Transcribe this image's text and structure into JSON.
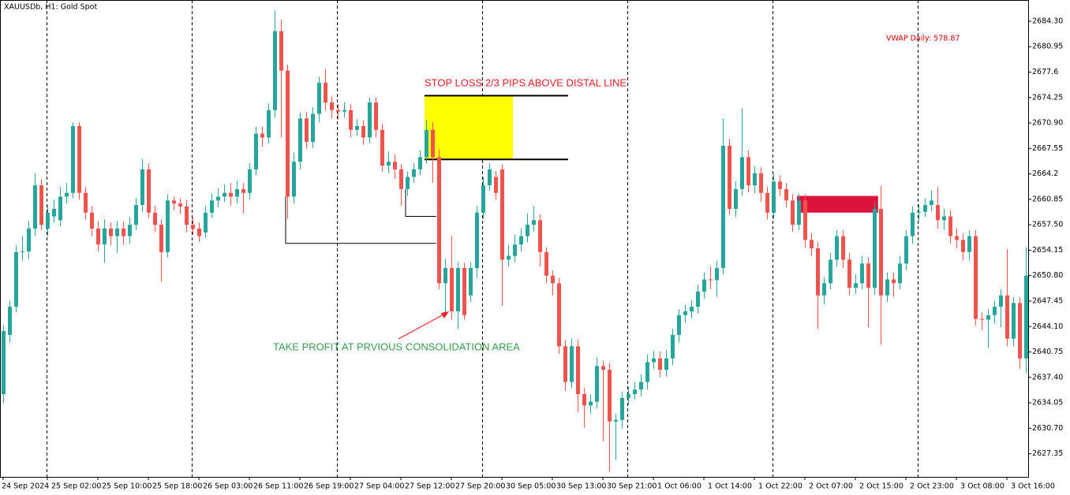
{
  "chart_data": {
    "type": "candlestick",
    "title": "XAUUSDb, H1:  Gold Spot",
    "indicator_label": "VWAP Daily: 578.87",
    "annotations": [
      "STOP LOSS 2/3 PIPS ABOVE DISTAL LINE",
      "TAKE PROFIT AT PRVIOUS CONSOLIDATION AREA"
    ],
    "up_color": "#26a69a",
    "down_color": "#ef5350",
    "ylim": [
      2624.3,
      2687.1
    ],
    "yticks": [
      {
        "value": 2684.3,
        "label": "2684.30"
      },
      2680.95,
      2677.6,
      2674.25,
      {
        "value": 2670.9,
        "label": "2670.90"
      },
      2667.55,
      2664.2,
      2660.85,
      {
        "value": 2657.5,
        "label": "2657.50"
      },
      2654.15,
      {
        "value": 2650.8,
        "label": "2650.80"
      },
      2647.45,
      {
        "value": 2644.1,
        "label": "2644.10"
      },
      2640.75,
      {
        "value": 2637.4,
        "label": "2637.40"
      },
      2634.05,
      {
        "value": 2630.7,
        "label": "2630.70"
      },
      2627.35
    ],
    "xticks": [
      {
        "value": 0,
        "label": "24 Sep 2024"
      },
      {
        "value": 7,
        "label": "25 Sep 02:00"
      },
      {
        "value": 15,
        "label": "25 Sep 10:00"
      },
      {
        "value": 23,
        "label": "25 Sep 18:00"
      },
      {
        "value": 31,
        "label": "26 Sep 03:00"
      },
      {
        "value": 39,
        "label": "26 Sep 11:00"
      },
      {
        "value": 47,
        "label": "26 Sep 19:00"
      },
      {
        "value": 55,
        "label": "27 Sep 04:00"
      },
      {
        "value": 63,
        "label": "27 Sep 12:00"
      },
      {
        "value": 71,
        "label": "27 Sep 20:00"
      },
      {
        "value": 79,
        "label": "30 Sep 05:00"
      },
      {
        "value": 87,
        "label": "30 Sep 13:00"
      },
      {
        "value": 95,
        "label": "30 Sep 21:00"
      },
      {
        "value": 103,
        "label": "1 Oct 06:00"
      },
      {
        "value": 111,
        "label": "1 Oct 14:00"
      },
      {
        "value": 119,
        "label": "1 Oct 22:00"
      },
      {
        "value": 127,
        "label": "2 Oct 07:00"
      },
      {
        "value": 135,
        "label": "2 Oct 15:00"
      },
      {
        "value": 143,
        "label": "2 Oct 23:00"
      },
      {
        "value": 151,
        "label": "3 Oct 08:00"
      },
      {
        "value": 159,
        "label": "3 Oct 16:00"
      }
    ],
    "separators": [
      7,
      30,
      53,
      76,
      99,
      122,
      145
    ],
    "zones": [
      {
        "x": [
          66.75,
          80.75
        ],
        "y": [
          2666.2,
          2674.5
        ],
        "color": "#ffff00"
      },
      {
        "x": [
          125.75,
          138.6
        ],
        "y": [
          2659.1,
          2661.3
        ],
        "color": "#dc143c"
      }
    ],
    "levels": [
      {
        "x": [
          66.75,
          89.5
        ],
        "y": 2674.5,
        "color": "#000000"
      },
      {
        "x": [
          66.75,
          89.5
        ],
        "y": 2666.1,
        "color": "#000000"
      }
    ],
    "paths": [
      {
        "x": [
          44.75,
          44.75,
          68.6
        ],
        "y": [
          2661.2,
          2655.05,
          2655.05
        ]
      },
      {
        "x": [
          63.75,
          63.75,
          68.6
        ],
        "y": [
          2662.2,
          2658.6,
          2658.6
        ]
      }
    ],
    "candles": [
      [
        2635.2,
        2644.3,
        2634.0,
        2643.5
      ],
      [
        2643.0,
        2647.5,
        2642.0,
        2646.7
      ],
      [
        2646.7,
        2654.8,
        2646.0,
        2653.9
      ],
      [
        2653.9,
        2656.0,
        2652.8,
        2654.0
      ],
      [
        2654.0,
        2658.0,
        2653.0,
        2657.0
      ],
      [
        2657.0,
        2664.3,
        2656.0,
        2662.7
      ],
      [
        2662.7,
        2663.5,
        2656.8,
        2657.5
      ],
      [
        2657.0,
        2660.0,
        2656.0,
        2659.1
      ],
      [
        2658.6,
        2660.8,
        2657.8,
        2659.6
      ],
      [
        2658.1,
        2662.5,
        2657.3,
        2661.2
      ],
      [
        2661.2,
        2663.0,
        2660.3,
        2661.7
      ],
      [
        2661.7,
        2671.0,
        2661.0,
        2670.5
      ],
      [
        2670.5,
        2671.0,
        2660.8,
        2661.7
      ],
      [
        2661.7,
        2662.5,
        2658.2,
        2659.1
      ],
      [
        2659.1,
        2660.0,
        2656.0,
        2657.0
      ],
      [
        2657.0,
        2658.0,
        2654.0,
        2654.9
      ],
      [
        2654.9,
        2658.2,
        2652.5,
        2657.0
      ],
      [
        2657.0,
        2657.8,
        2654.8,
        2656.0
      ],
      [
        2656.0,
        2658.0,
        2653.8,
        2657.0
      ],
      [
        2657.0,
        2657.9,
        2654.9,
        2656.0
      ],
      [
        2656.0,
        2658.5,
        2655.0,
        2657.5
      ],
      [
        2657.5,
        2661.0,
        2656.8,
        2660.1
      ],
      [
        2660.1,
        2666.2,
        2659.2,
        2664.8
      ],
      [
        2664.8,
        2665.6,
        2658.4,
        2659.1
      ],
      [
        2659.1,
        2660.0,
        2656.6,
        2657.5
      ],
      [
        2657.5,
        2658.2,
        2650.0,
        2653.9
      ],
      [
        2653.9,
        2661.5,
        2653.2,
        2660.7
      ],
      [
        2660.7,
        2661.2,
        2659.4,
        2660.3
      ],
      [
        2660.3,
        2661.0,
        2658.9,
        2659.9
      ],
      [
        2659.9,
        2660.8,
        2656.5,
        2657.5
      ],
      [
        2657.5,
        2658.5,
        2656.2,
        2657.0
      ],
      [
        2657.0,
        2657.8,
        2655.2,
        2656.0
      ],
      [
        2656.5,
        2660.0,
        2655.8,
        2659.1
      ],
      [
        2659.1,
        2661.6,
        2658.4,
        2660.7
      ],
      [
        2660.7,
        2662.3,
        2659.8,
        2661.2
      ],
      [
        2661.2,
        2662.8,
        2660.5,
        2661.7
      ],
      [
        2661.7,
        2663.0,
        2660.0,
        2661.2
      ],
      [
        2661.2,
        2663.3,
        2660.3,
        2662.2
      ],
      [
        2662.2,
        2663.0,
        2659.0,
        2661.7
      ],
      [
        2661.7,
        2665.6,
        2660.8,
        2664.8
      ],
      [
        2664.8,
        2670.4,
        2664.0,
        2669.5
      ],
      [
        2669.5,
        2670.4,
        2667.8,
        2669.0
      ],
      [
        2669.0,
        2673.5,
        2668.2,
        2672.6
      ],
      [
        2672.6,
        2685.7,
        2671.6,
        2683.0
      ],
      [
        2683.0,
        2684.5,
        2669.0,
        2677.8
      ],
      [
        2677.8,
        2678.6,
        2658.3,
        2661.2
      ],
      [
        2661.2,
        2667.0,
        2660.3,
        2665.8
      ],
      [
        2665.8,
        2672.3,
        2664.8,
        2671.5
      ],
      [
        2671.5,
        2672.4,
        2667.5,
        2668.4
      ],
      [
        2668.4,
        2673.0,
        2667.6,
        2672.1
      ],
      [
        2672.1,
        2677.0,
        2671.0,
        2676.2
      ],
      [
        2676.2,
        2678.0,
        2672.6,
        2673.6
      ],
      [
        2673.6,
        2674.4,
        2671.5,
        2672.6
      ],
      [
        2672.6,
        2673.4,
        2671.4,
        2672.4
      ],
      [
        2672.4,
        2673.6,
        2671.6,
        2672.6
      ],
      [
        2672.6,
        2673.4,
        2669.0,
        2670.0
      ],
      [
        2670.0,
        2671.4,
        2669.2,
        2670.5
      ],
      [
        2670.5,
        2671.3,
        2668.0,
        2669.0
      ],
      [
        2669.0,
        2674.2,
        2668.2,
        2673.6
      ],
      [
        2673.6,
        2674.3,
        2669.0,
        2670.0
      ],
      [
        2670.0,
        2670.8,
        2664.5,
        2665.3
      ],
      [
        2665.3,
        2667.2,
        2664.3,
        2665.8
      ],
      [
        2665.8,
        2666.8,
        2663.5,
        2664.8
      ],
      [
        2664.8,
        2665.5,
        2660.0,
        2662.2
      ],
      [
        2662.2,
        2664.5,
        2661.3,
        2663.8
      ],
      [
        2663.8,
        2665.6,
        2663.0,
        2664.8
      ],
      [
        2664.8,
        2667.3,
        2664.0,
        2666.4
      ],
      [
        2666.4,
        2671.3,
        2665.6,
        2670.0
      ],
      [
        2670.0,
        2671.0,
        2663.0,
        2666.4
      ],
      [
        2666.4,
        2667.4,
        2649.0,
        2649.8
      ],
      [
        2649.8,
        2653.0,
        2645.5,
        2651.8
      ],
      [
        2651.8,
        2656.0,
        2645.0,
        2646.1
      ],
      [
        2646.1,
        2652.6,
        2643.8,
        2651.8
      ],
      [
        2651.8,
        2652.5,
        2645.0,
        2645.6
      ],
      [
        2648.2,
        2652.6,
        2647.3,
        2651.8
      ],
      [
        2651.8,
        2660.0,
        2650.5,
        2659.1
      ],
      [
        2659.1,
        2663.8,
        2658.3,
        2662.7
      ],
      [
        2662.7,
        2665.6,
        2662.0,
        2664.8
      ],
      [
        2663.8,
        2664.6,
        2660.8,
        2661.7
      ],
      [
        2664.8,
        2665.5,
        2646.8,
        2652.9
      ],
      [
        2652.9,
        2654.8,
        2652.0,
        2653.4
      ],
      [
        2653.4,
        2656.2,
        2652.6,
        2654.9
      ],
      [
        2654.9,
        2657.0,
        2654.0,
        2656.0
      ],
      [
        2656.0,
        2659.0,
        2655.2,
        2657.5
      ],
      [
        2657.5,
        2660.0,
        2656.6,
        2658.1
      ],
      [
        2658.1,
        2658.9,
        2652.0,
        2653.9
      ],
      [
        2653.9,
        2654.5,
        2649.8,
        2650.8
      ],
      [
        2650.8,
        2651.5,
        2648.2,
        2649.8
      ],
      [
        2649.8,
        2650.5,
        2640.5,
        2641.5
      ],
      [
        2641.5,
        2642.3,
        2635.6,
        2636.8
      ],
      [
        2636.8,
        2642.5,
        2636.0,
        2641.5
      ],
      [
        2641.5,
        2642.4,
        2632.8,
        2635.2
      ],
      [
        2635.2,
        2636.0,
        2630.8,
        2633.7
      ],
      [
        2633.7,
        2635.2,
        2632.6,
        2634.2
      ],
      [
        2634.2,
        2640.0,
        2633.3,
        2638.9
      ],
      [
        2638.9,
        2639.6,
        2629.0,
        2638.4
      ],
      [
        2638.4,
        2639.3,
        2625.0,
        2631.6
      ],
      [
        2631.6,
        2632.6,
        2626.5,
        2631.8
      ],
      [
        2631.8,
        2635.5,
        2630.6,
        2634.7
      ],
      [
        2634.7,
        2636.2,
        2633.8,
        2635.2
      ],
      [
        2635.2,
        2636.8,
        2634.5,
        2635.8
      ],
      [
        2635.8,
        2637.8,
        2634.9,
        2636.8
      ],
      [
        2636.8,
        2640.4,
        2635.8,
        2639.4
      ],
      [
        2639.4,
        2640.9,
        2638.5,
        2639.9
      ],
      [
        2639.9,
        2640.8,
        2637.4,
        2638.4
      ],
      [
        2638.4,
        2641.0,
        2637.5,
        2639.9
      ],
      [
        2639.9,
        2643.8,
        2639.0,
        2643.0
      ],
      [
        2643.0,
        2646.4,
        2642.0,
        2645.6
      ],
      [
        2645.6,
        2647.0,
        2644.6,
        2646.1
      ],
      [
        2646.1,
        2647.6,
        2645.2,
        2646.7
      ],
      [
        2646.7,
        2649.6,
        2645.8,
        2648.7
      ],
      [
        2648.7,
        2651.2,
        2647.8,
        2650.3
      ],
      [
        2650.3,
        2652.0,
        2649.0,
        2650.2
      ],
      [
        2650.2,
        2652.8,
        2648.0,
        2651.8
      ],
      [
        2651.8,
        2671.5,
        2651.0,
        2667.9
      ],
      [
        2667.9,
        2668.8,
        2658.8,
        2659.6
      ],
      [
        2659.6,
        2663.2,
        2658.5,
        2662.2
      ],
      [
        2662.2,
        2672.8,
        2661.3,
        2666.4
      ],
      [
        2666.4,
        2667.3,
        2661.8,
        2662.7
      ],
      [
        2662.7,
        2665.2,
        2661.6,
        2664.3
      ],
      [
        2664.3,
        2665.1,
        2660.5,
        2661.7
      ],
      [
        2661.7,
        2662.5,
        2658.2,
        2659.1
      ],
      [
        2659.1,
        2664.2,
        2658.3,
        2663.2
      ],
      [
        2663.2,
        2664.0,
        2661.3,
        2662.2
      ],
      [
        2662.2,
        2663.0,
        2659.8,
        2660.7
      ],
      [
        2660.7,
        2661.5,
        2656.6,
        2657.5
      ],
      [
        2657.5,
        2661.6,
        2656.8,
        2660.7
      ],
      [
        2660.7,
        2661.5,
        2654.5,
        2655.5
      ],
      [
        2655.5,
        2656.4,
        2653.4,
        2654.4
      ],
      [
        2654.4,
        2655.2,
        2643.8,
        2648.2
      ],
      [
        2648.2,
        2650.6,
        2647.0,
        2649.8
      ],
      [
        2649.8,
        2653.8,
        2649.0,
        2652.9
      ],
      [
        2652.9,
        2656.8,
        2652.0,
        2656.0
      ],
      [
        2656.0,
        2656.8,
        2651.8,
        2652.9
      ],
      [
        2652.9,
        2653.8,
        2648.2,
        2649.2
      ],
      [
        2649.2,
        2651.0,
        2648.4,
        2649.8
      ],
      [
        2649.8,
        2653.4,
        2649.0,
        2652.4
      ],
      [
        2652.4,
        2653.2,
        2644.0,
        2649.2
      ],
      [
        2649.2,
        2660.5,
        2648.3,
        2659.6
      ],
      [
        2659.6,
        2662.6,
        2641.7,
        2648.2
      ],
      [
        2648.2,
        2651.2,
        2647.3,
        2650.3
      ],
      [
        2650.3,
        2651.2,
        2648.0,
        2649.8
      ],
      [
        2649.8,
        2653.4,
        2649.0,
        2652.4
      ],
      [
        2652.4,
        2656.8,
        2651.5,
        2656.0
      ],
      [
        2656.0,
        2659.9,
        2655.0,
        2659.1
      ],
      [
        2659.1,
        2660.2,
        2658.0,
        2659.2
      ],
      [
        2659.2,
        2661.0,
        2658.5,
        2660.1
      ],
      [
        2660.1,
        2662.0,
        2659.3,
        2660.7
      ],
      [
        2660.1,
        2662.5,
        2657.0,
        2658.1
      ],
      [
        2658.1,
        2659.6,
        2656.8,
        2658.6
      ],
      [
        2658.6,
        2659.4,
        2655.0,
        2656.0
      ],
      [
        2656.0,
        2657.0,
        2654.4,
        2655.5
      ],
      [
        2655.5,
        2656.4,
        2652.8,
        2653.9
      ],
      [
        2653.9,
        2656.8,
        2652.8,
        2656.0
      ],
      [
        2656.0,
        2656.8,
        2644.2,
        2645.1
      ],
      [
        2645.1,
        2646.0,
        2643.6,
        2645.0
      ],
      [
        2645.0,
        2646.4,
        2641.3,
        2645.6
      ],
      [
        2645.6,
        2647.5,
        2644.5,
        2646.7
      ],
      [
        2646.7,
        2649.0,
        2644.0,
        2648.2
      ],
      [
        2648.2,
        2654.3,
        2641.5,
        2642.5
      ],
      [
        2642.5,
        2648.0,
        2641.5,
        2647.2
      ],
      [
        2647.2,
        2648.0,
        2638.5,
        2639.9
      ],
      [
        2639.9,
        2654.5,
        2638.0,
        2650.8
      ]
    ]
  }
}
